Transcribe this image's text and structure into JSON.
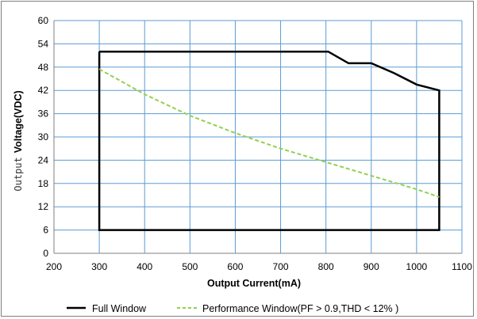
{
  "chart_data": {
    "type": "line",
    "title": "",
    "xlabel": "Output Current(mA)",
    "ylabel_prefix": "Output",
    "ylabel_main": "Voltage(VDC)",
    "xlim": [
      200,
      1100
    ],
    "ylim": [
      0,
      60
    ],
    "xticks": [
      200,
      300,
      400,
      500,
      600,
      700,
      800,
      900,
      1000,
      1100
    ],
    "yticks": [
      0,
      6,
      12,
      18,
      24,
      30,
      36,
      42,
      48,
      54,
      60
    ],
    "grid": true,
    "legend_position": "bottom",
    "series": [
      {
        "name": "Full Window",
        "color": "#000000",
        "style": "solid",
        "x": [
          300,
          805,
          850,
          900,
          950,
          1000,
          1050,
          1050,
          300,
          300
        ],
        "y": [
          52,
          52,
          49,
          49,
          46.5,
          43.5,
          42,
          6,
          6,
          52
        ]
      },
      {
        "name": "Performance Window(PF > 0.9,THD < 12% )",
        "color": "#92d050",
        "style": "dashed",
        "x": [
          300,
          400,
          500,
          600,
          700,
          800,
          900,
          1000,
          1050
        ],
        "y": [
          47.5,
          41,
          35.5,
          31,
          27,
          23.5,
          20,
          16.5,
          14.5
        ]
      }
    ]
  }
}
